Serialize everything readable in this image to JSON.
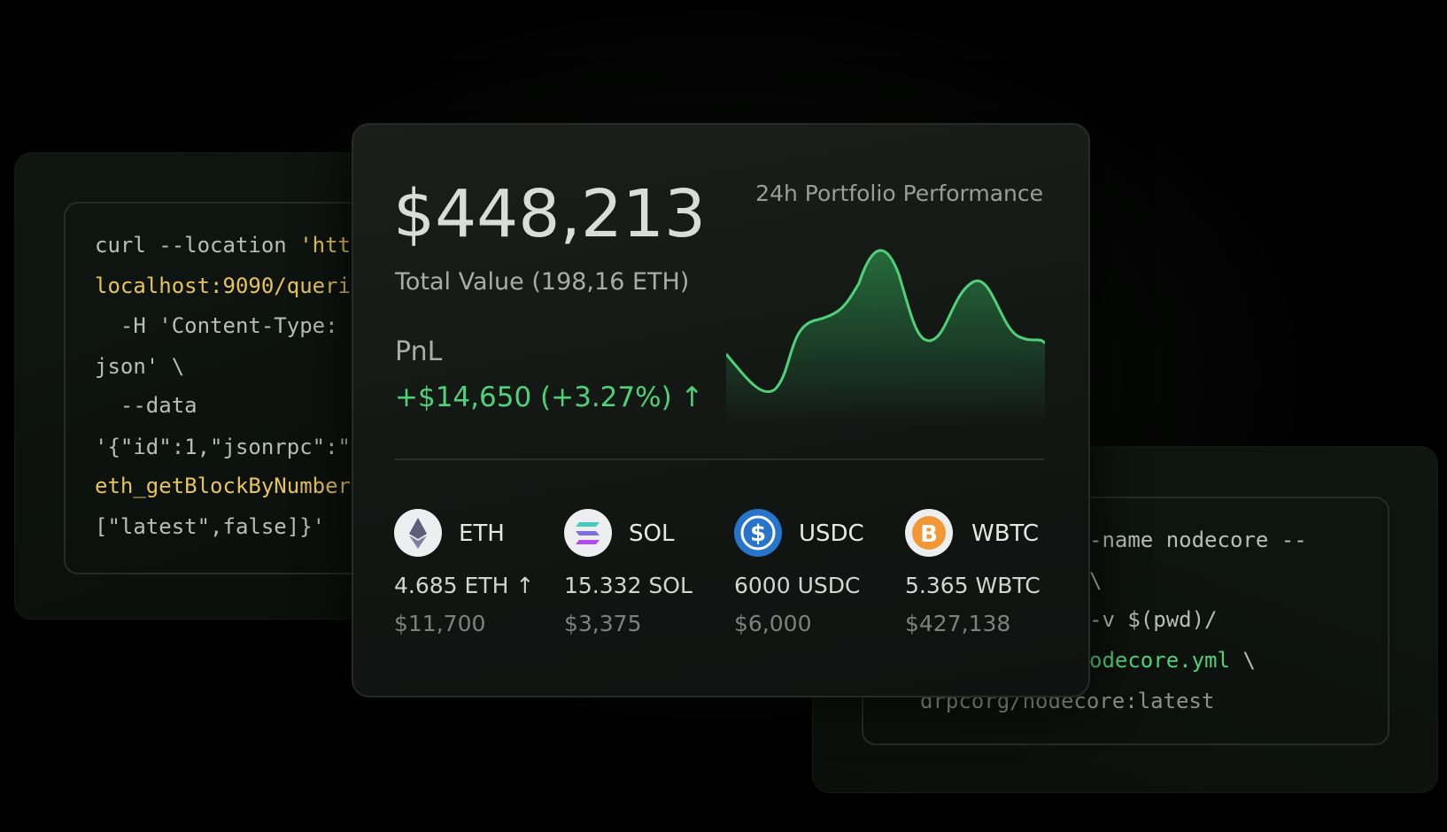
{
  "portfolio": {
    "total": "$448,213",
    "total_label": "Total Value (198,16 ETH)",
    "pnl_label": "PnL",
    "pnl": "+$14,650 (+3.27%) ↑",
    "chart_title": "24h Portfolio Performance"
  },
  "assets": [
    {
      "symbol": "ETH",
      "amount": "4.685 ETH ↑",
      "usd": "$11,700"
    },
    {
      "symbol": "SOL",
      "amount": "15.332 SOL",
      "usd": "$3,375"
    },
    {
      "symbol": "USDC",
      "amount": "6000 USDC",
      "usd": "$6,000"
    },
    {
      "symbol": "WBTC",
      "amount": "5.365 WBTC",
      "usd": "$427,138"
    }
  ],
  "code_left": [
    [
      "curl --location ",
      "'htt"
    ],
    [
      "localhost:9090/queri"
    ],
    [
      "  -H 'Content-Type: "
    ],
    [
      "json' \\"
    ],
    [
      "  --data"
    ],
    [
      "'{\"id\":1,\"jsonrpc\":\""
    ],
    [
      "eth_getBlockByNumber"
    ],
    [
      "[\"latest\",false]}'"
    ]
  ],
  "code_right": [
    [
      "-name nodecore --"
    ],
    [
      "\\"
    ],
    [
      "-v $(pwd)/"
    ],
    [
      "odecore.yml",
      " \\"
    ],
    [
      "drpcorg/nodecore:latest"
    ]
  ]
}
